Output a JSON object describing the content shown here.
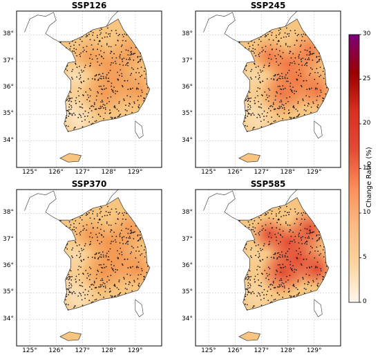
{
  "panels": [
    {
      "title": "SSP126",
      "intensity": 0.3
    },
    {
      "title": "SSP245",
      "intensity": 0.45
    },
    {
      "title": "SSP370",
      "intensity": 0.4
    },
    {
      "title": "SSP585",
      "intensity": 0.62
    }
  ],
  "lon_ticks": [
    "125°",
    "126°",
    "127°",
    "128°",
    "129°"
  ],
  "lat_ticks": [
    "38°",
    "37°",
    "36°",
    "35°",
    "34°"
  ],
  "colorbar": {
    "label": "Change Ratio (%)",
    "ticks": [
      "30",
      "25",
      "20",
      "15",
      "10",
      "5",
      "0"
    ],
    "range": [
      0,
      30
    ],
    "colors": [
      "#fff7ec",
      "#fdd49e",
      "#fdbb84",
      "#fc8d59",
      "#e34a33",
      "#d7301f",
      "#990000",
      "#7a0177"
    ]
  },
  "fill_color": "#f7c57f"
}
